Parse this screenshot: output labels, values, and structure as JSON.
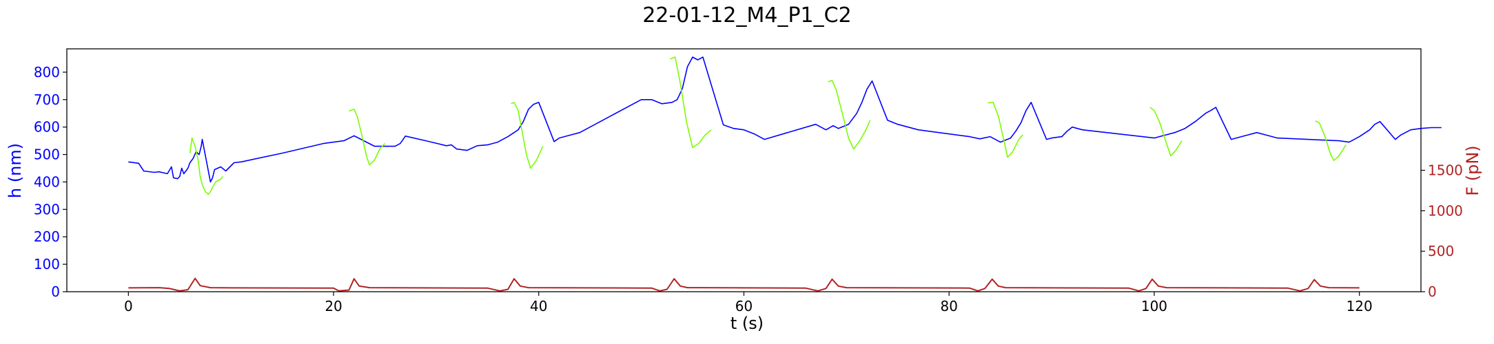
{
  "chart_data": {
    "type": "line",
    "title": "22-01-12_M4_P1_C2",
    "xlabel": "t (s)",
    "ylabel_left": "h (nm)",
    "ylabel_right": "F (pN)",
    "xlim": [
      -6,
      126
    ],
    "ylim_left": [
      0,
      885
    ],
    "ylim_right": [
      0,
      3000
    ],
    "x_ticks": [
      0,
      20,
      40,
      60,
      80,
      100,
      120
    ],
    "y_ticks_left": [
      0,
      100,
      200,
      300,
      400,
      500,
      600,
      700,
      800
    ],
    "y_ticks_right": [
      0,
      500,
      1000,
      1500
    ],
    "grid": false,
    "colors": {
      "height": "#0000ff",
      "height_highlight": "#7cfc00",
      "force": "#b22222",
      "left_axis": "#0000ff",
      "right_axis": "#b22222"
    },
    "series": [
      {
        "axis": "left",
        "color": "#0000ff",
        "points": [
          [
            0,
            473
          ],
          [
            1,
            468
          ],
          [
            1.5,
            440
          ],
          [
            2.5,
            435
          ],
          [
            3,
            437
          ],
          [
            3.8,
            430
          ],
          [
            4.2,
            455
          ],
          [
            4.4,
            415
          ],
          [
            4.8,
            412
          ],
          [
            5,
            420
          ],
          [
            5.2,
            450
          ],
          [
            5.4,
            430
          ],
          [
            5.8,
            450
          ],
          [
            6,
            470
          ],
          [
            6.3,
            485
          ],
          [
            6.6,
            510
          ],
          [
            6.9,
            500
          ],
          [
            7.1,
            530
          ],
          [
            7.2,
            555
          ],
          [
            8,
            400
          ],
          [
            8.2,
            415
          ],
          [
            8.4,
            445
          ],
          [
            9,
            455
          ],
          [
            9.5,
            440
          ],
          [
            10.3,
            470
          ],
          [
            11,
            473
          ],
          [
            15,
            505
          ],
          [
            19,
            540
          ],
          [
            20,
            545
          ],
          [
            21,
            550
          ],
          [
            22,
            568
          ],
          [
            24,
            530
          ],
          [
            26,
            530
          ],
          [
            26.5,
            540
          ],
          [
            27,
            567
          ],
          [
            29,
            550
          ],
          [
            31,
            532
          ],
          [
            31.5,
            535
          ],
          [
            32,
            520
          ],
          [
            33,
            515
          ],
          [
            34,
            532
          ],
          [
            35,
            535
          ],
          [
            36,
            545
          ],
          [
            37,
            565
          ],
          [
            38,
            590
          ],
          [
            38.5,
            620
          ],
          [
            39,
            665
          ],
          [
            39.5,
            683
          ],
          [
            40,
            690
          ],
          [
            41.5,
            547
          ],
          [
            42,
            560
          ],
          [
            43,
            570
          ],
          [
            44,
            580
          ],
          [
            45,
            600
          ],
          [
            47,
            640
          ],
          [
            50,
            700
          ],
          [
            51,
            700
          ],
          [
            52,
            685
          ],
          [
            53,
            690
          ],
          [
            53.5,
            700
          ],
          [
            54,
            740
          ],
          [
            54.5,
            820
          ],
          [
            55,
            855
          ],
          [
            55.5,
            845
          ],
          [
            56,
            855
          ],
          [
            58,
            608
          ],
          [
            59,
            595
          ],
          [
            60,
            590
          ],
          [
            61,
            575
          ],
          [
            62,
            555
          ],
          [
            67,
            610
          ],
          [
            68,
            590
          ],
          [
            68.7,
            605
          ],
          [
            69.2,
            595
          ],
          [
            70.2,
            610
          ],
          [
            71,
            650
          ],
          [
            71.5,
            690
          ],
          [
            72,
            738
          ],
          [
            72.5,
            768
          ],
          [
            74,
            625
          ],
          [
            75,
            610
          ],
          [
            76,
            600
          ],
          [
            77,
            590
          ],
          [
            82,
            565
          ],
          [
            83,
            557
          ],
          [
            84,
            565
          ],
          [
            85,
            545
          ],
          [
            86,
            560
          ],
          [
            86.5,
            585
          ],
          [
            87,
            615
          ],
          [
            87.5,
            660
          ],
          [
            88,
            690
          ],
          [
            89.5,
            555
          ],
          [
            90,
            560
          ],
          [
            91,
            565
          ],
          [
            91.5,
            585
          ],
          [
            92,
            600
          ],
          [
            93,
            590
          ],
          [
            100,
            560
          ],
          [
            101,
            570
          ],
          [
            102,
            580
          ],
          [
            103,
            595
          ],
          [
            104,
            620
          ],
          [
            105,
            650
          ],
          [
            105.5,
            660
          ],
          [
            106,
            672
          ],
          [
            107.5,
            555
          ],
          [
            108,
            560
          ],
          [
            109,
            570
          ],
          [
            110,
            580
          ],
          [
            111,
            570
          ],
          [
            112,
            560
          ],
          [
            118,
            550
          ],
          [
            119,
            545
          ],
          [
            119.5,
            555
          ],
          [
            120,
            565
          ],
          [
            121,
            590
          ],
          [
            121.5,
            610
          ],
          [
            122,
            620
          ],
          [
            123.5,
            555
          ],
          [
            124,
            570
          ],
          [
            125,
            590
          ],
          [
            126,
            595
          ],
          [
            127,
            598
          ],
          [
            128,
            598
          ]
        ]
      },
      {
        "axis": "left",
        "color": "#7cfc00",
        "segments": [
          [
            [
              6,
              505
            ],
            [
              6.2,
              560
            ],
            [
              6.5,
              530
            ],
            [
              6.8,
              480
            ],
            [
              7,
              420
            ],
            [
              7.2,
              390
            ],
            [
              7.5,
              365
            ],
            [
              7.8,
              355
            ],
            [
              8,
              365
            ],
            [
              8.2,
              380
            ],
            [
              8.5,
              400
            ],
            [
              9,
              410
            ],
            [
              9.2,
              420
            ]
          ],
          [
            [
              21.5,
              658
            ],
            [
              22,
              665
            ],
            [
              22.3,
              640
            ],
            [
              22.7,
              580
            ],
            [
              23.2,
              495
            ],
            [
              23.5,
              462
            ],
            [
              24,
              480
            ],
            [
              24.5,
              520
            ],
            [
              25,
              540
            ]
          ],
          [
            [
              37.3,
              685
            ],
            [
              37.6,
              690
            ],
            [
              38,
              660
            ],
            [
              38.4,
              580
            ],
            [
              38.8,
              500
            ],
            [
              39.2,
              450
            ],
            [
              39.8,
              480
            ],
            [
              40.4,
              530
            ]
          ],
          [
            [
              52.8,
              848
            ],
            [
              53.3,
              855
            ],
            [
              53.8,
              760
            ],
            [
              54.4,
              620
            ],
            [
              55,
              525
            ],
            [
              55.6,
              540
            ],
            [
              56.2,
              570
            ],
            [
              56.8,
              590
            ]
          ],
          [
            [
              68.2,
              765
            ],
            [
              68.6,
              770
            ],
            [
              69,
              735
            ],
            [
              69.6,
              650
            ],
            [
              70.2,
              560
            ],
            [
              70.7,
              520
            ],
            [
              71.3,
              550
            ],
            [
              71.9,
              590
            ],
            [
              72.3,
              625
            ]
          ],
          [
            [
              83.8,
              688
            ],
            [
              84.3,
              690
            ],
            [
              84.8,
              640
            ],
            [
              85.3,
              560
            ],
            [
              85.7,
              490
            ],
            [
              86.2,
              510
            ],
            [
              86.8,
              555
            ],
            [
              87.2,
              572
            ]
          ],
          [
            [
              99.6,
              672
            ],
            [
              100,
              660
            ],
            [
              100.5,
              620
            ],
            [
              101.2,
              540
            ],
            [
              101.6,
              495
            ],
            [
              102.1,
              515
            ],
            [
              102.7,
              550
            ]
          ],
          [
            [
              115.7,
              622
            ],
            [
              116.1,
              615
            ],
            [
              116.6,
              570
            ],
            [
              117.2,
              500
            ],
            [
              117.5,
              478
            ],
            [
              118,
              495
            ],
            [
              118.7,
              535
            ]
          ]
        ]
      },
      {
        "axis": "right",
        "color": "#b22222",
        "points": [
          [
            0,
            48
          ],
          [
            3,
            50
          ],
          [
            4,
            40
          ],
          [
            5,
            10
          ],
          [
            5.8,
            25
          ],
          [
            6.5,
            165
          ],
          [
            7,
            75
          ],
          [
            8,
            50
          ],
          [
            10,
            48
          ],
          [
            20,
            45
          ],
          [
            20.5,
            10
          ],
          [
            21.5,
            20
          ],
          [
            22,
            160
          ],
          [
            22.5,
            70
          ],
          [
            23.5,
            50
          ],
          [
            35,
            45
          ],
          [
            36.2,
            10
          ],
          [
            37,
            30
          ],
          [
            37.6,
            160
          ],
          [
            38.2,
            70
          ],
          [
            39,
            50
          ],
          [
            51,
            45
          ],
          [
            51.8,
            10
          ],
          [
            52.5,
            30
          ],
          [
            53.2,
            160
          ],
          [
            53.8,
            70
          ],
          [
            54.5,
            50
          ],
          [
            66,
            45
          ],
          [
            67.2,
            10
          ],
          [
            68,
            40
          ],
          [
            68.6,
            155
          ],
          [
            69.2,
            70
          ],
          [
            70,
            50
          ],
          [
            82,
            45
          ],
          [
            82.8,
            10
          ],
          [
            83.5,
            40
          ],
          [
            84.2,
            155
          ],
          [
            84.8,
            70
          ],
          [
            85.5,
            50
          ],
          [
            97.5,
            45
          ],
          [
            98.5,
            10
          ],
          [
            99.2,
            40
          ],
          [
            99.8,
            155
          ],
          [
            100.4,
            70
          ],
          [
            101.2,
            50
          ],
          [
            113,
            45
          ],
          [
            114.2,
            10
          ],
          [
            115,
            40
          ],
          [
            115.6,
            150
          ],
          [
            116.2,
            70
          ],
          [
            117,
            50
          ],
          [
            120,
            48
          ]
        ]
      }
    ]
  }
}
